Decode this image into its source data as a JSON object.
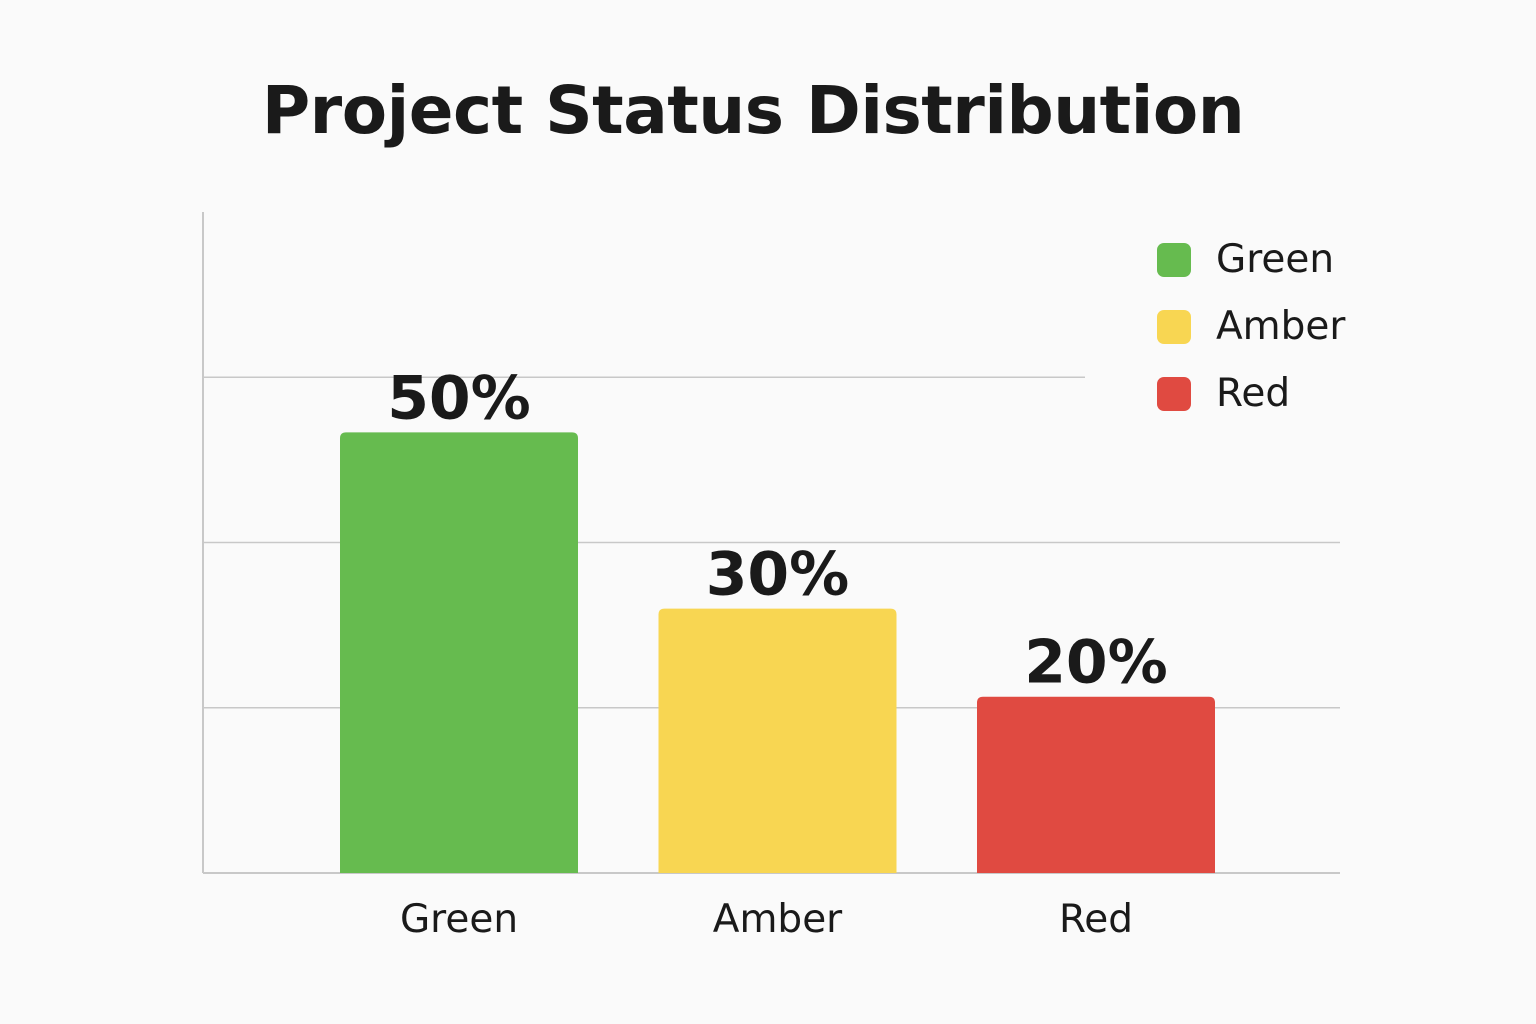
{
  "chart_data": {
    "type": "bar",
    "title": "Project Status Distribution",
    "categories": [
      "Green",
      "Amber",
      "Red"
    ],
    "values": [
      50,
      30,
      20
    ],
    "value_labels": [
      "50%",
      "30%",
      "20%"
    ],
    "colors": [
      "#66bb4f",
      "#f8d652",
      "#e04a41"
    ],
    "xlabel": "",
    "ylabel": "",
    "ylim": [
      0,
      75
    ],
    "grid": true,
    "legend": {
      "placement": "top-right",
      "entries": [
        "Green",
        "Amber",
        "Red"
      ]
    }
  }
}
